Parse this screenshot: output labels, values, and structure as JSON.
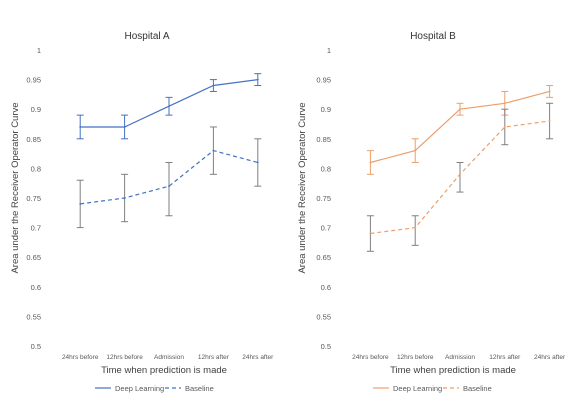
{
  "chart_data": [
    {
      "type": "line",
      "title": "Hospital A",
      "xlabel": "Time when prediction is made",
      "ylabel": "Area under the Receiver Operator Curve",
      "ylim": [
        0.5,
        1
      ],
      "yticks": [
        "0.5",
        "0.55",
        "0.6",
        "0.65",
        "0.7",
        "0.75",
        "0.8",
        "0.85",
        "0.9",
        "0.95",
        "1"
      ],
      "categories": [
        "24hrs before",
        "12hrs before",
        "Admission",
        "12hrs after",
        "24hrs after"
      ],
      "grid": false,
      "legend_position": "bottom",
      "series": [
        {
          "name": "Deep Learning",
          "values": [
            0.87,
            0.87,
            0.905,
            0.94,
            0.95
          ],
          "err_low": [
            0.85,
            0.85,
            0.89,
            0.93,
            0.94
          ],
          "err_high": [
            0.89,
            0.89,
            0.92,
            0.95,
            0.96
          ],
          "color": "#4472c4",
          "dashed": false
        },
        {
          "name": "Baseline",
          "values": [
            0.74,
            0.75,
            0.77,
            0.83,
            0.81
          ],
          "err_low": [
            0.7,
            0.71,
            0.72,
            0.79,
            0.77
          ],
          "err_high": [
            0.78,
            0.79,
            0.81,
            0.87,
            0.85
          ],
          "color": "#4472c4",
          "dashed": true
        }
      ]
    },
    {
      "type": "line",
      "title": "Hospital B",
      "xlabel": "Time when prediction is made",
      "ylabel": "Area under the Receiver Operator Curve",
      "ylim": [
        0.5,
        1
      ],
      "yticks": [
        "0.5",
        "0.55",
        "0.6",
        "0.65",
        "0.7",
        "0.75",
        "0.8",
        "0.85",
        "0.9",
        "0.95",
        "1"
      ],
      "categories": [
        "24hrs before",
        "12hrs before",
        "Admission",
        "12hrs after",
        "24hrs after"
      ],
      "grid": false,
      "legend_position": "bottom",
      "series": [
        {
          "name": "Deep Learning",
          "values": [
            0.81,
            0.83,
            0.9,
            0.91,
            0.93
          ],
          "err_low": [
            0.79,
            0.81,
            0.89,
            0.89,
            0.92
          ],
          "err_high": [
            0.83,
            0.85,
            0.91,
            0.93,
            0.94
          ],
          "color": "#ed9e6a",
          "dashed": false
        },
        {
          "name": "Baseline",
          "values": [
            0.69,
            0.7,
            0.79,
            0.87,
            0.88
          ],
          "err_low": [
            0.66,
            0.67,
            0.76,
            0.84,
            0.85
          ],
          "err_high": [
            0.72,
            0.72,
            0.81,
            0.9,
            0.91
          ],
          "color": "#ed9e6a",
          "dashed": true
        }
      ]
    }
  ]
}
